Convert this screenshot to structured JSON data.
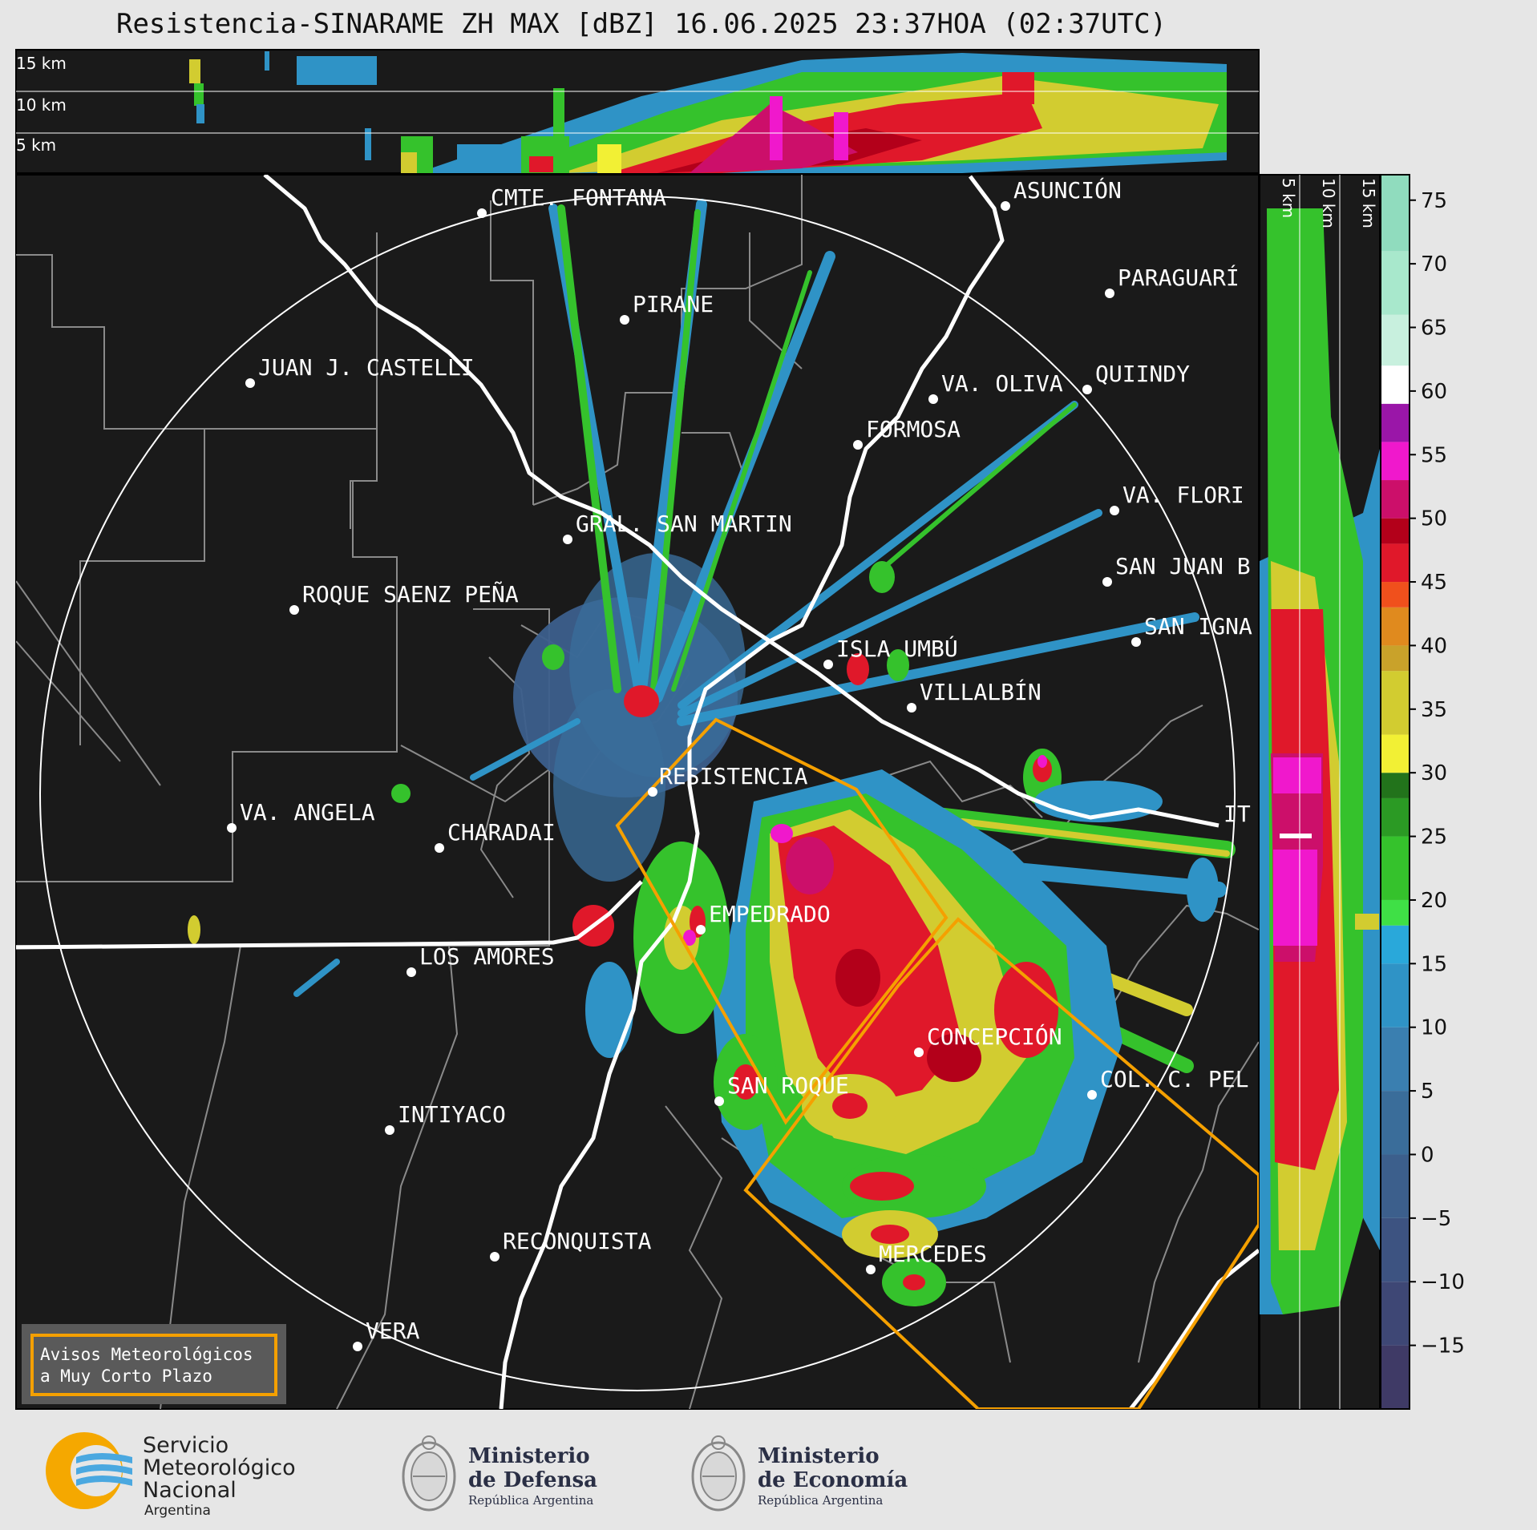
{
  "title": "Resistencia-SINARAME ZH MAX [dBZ] 16.06.2025 23:37HOA (02:37UTC)",
  "height_ticks": [
    "15 km",
    "10 km",
    "5 km"
  ],
  "colorbar": {
    "ticks": [
      "75",
      "70",
      "65",
      "60",
      "55",
      "50",
      "45",
      "40",
      "35",
      "30",
      "25",
      "20",
      "15",
      "10",
      "5",
      "0",
      "−5",
      "−10",
      "−15"
    ],
    "bands": [
      {
        "from": -20,
        "to": -15,
        "color": "#3f3a66"
      },
      {
        "from": -15,
        "to": -10,
        "color": "#3e4775"
      },
      {
        "from": -10,
        "to": -5,
        "color": "#3d5381"
      },
      {
        "from": -5,
        "to": 0,
        "color": "#3c5f8c"
      },
      {
        "from": 0,
        "to": 5,
        "color": "#3a6d9a"
      },
      {
        "from": 5,
        "to": 10,
        "color": "#3a7fb0"
      },
      {
        "from": 10,
        "to": 15,
        "color": "#2f93c6"
      },
      {
        "from": 15,
        "to": 18,
        "color": "#29a8da"
      },
      {
        "from": 18,
        "to": 20,
        "color": "#3fe046"
      },
      {
        "from": 20,
        "to": 25,
        "color": "#35c22c"
      },
      {
        "from": 25,
        "to": 28,
        "color": "#2b9a24"
      },
      {
        "from": 28,
        "to": 30,
        "color": "#22731b"
      },
      {
        "from": 30,
        "to": 33,
        "color": "#f2f034"
      },
      {
        "from": 33,
        "to": 38,
        "color": "#d2cc30"
      },
      {
        "from": 38,
        "to": 40,
        "color": "#c9a22a"
      },
      {
        "from": 40,
        "to": 43,
        "color": "#e08a1e"
      },
      {
        "from": 43,
        "to": 45,
        "color": "#f0501c"
      },
      {
        "from": 45,
        "to": 48,
        "color": "#e0182a"
      },
      {
        "from": 48,
        "to": 50,
        "color": "#b3001a"
      },
      {
        "from": 50,
        "to": 53,
        "color": "#cc0f6a"
      },
      {
        "from": 53,
        "to": 56,
        "color": "#f018cc"
      },
      {
        "from": 56,
        "to": 59,
        "color": "#9a16a8"
      },
      {
        "from": 59,
        "to": 62,
        "color": "#ffffff"
      },
      {
        "from": 62,
        "to": 66,
        "color": "#c8f0de"
      },
      {
        "from": 66,
        "to": 71,
        "color": "#a8e8cc"
      },
      {
        "from": 71,
        "to": 77,
        "color": "#90dcbe"
      }
    ]
  },
  "cities": [
    {
      "name": "CMTE. FONTANA"
    },
    {
      "name": "ASUNCIÓN"
    },
    {
      "name": "PIRANE"
    },
    {
      "name": "PARAGUARÍ"
    },
    {
      "name": "JUAN J. CASTELLI"
    },
    {
      "name": "VA. OLIVA"
    },
    {
      "name": "QUIINDY"
    },
    {
      "name": "FORMOSA"
    },
    {
      "name": "VA. FLORI"
    },
    {
      "name": "GRAL. SAN MARTIN"
    },
    {
      "name": "SAN JUAN B"
    },
    {
      "name": "ROQUE SAENZ PEÑA"
    },
    {
      "name": "SAN IGNA"
    },
    {
      "name": "ISLA UMBÚ"
    },
    {
      "name": "VILLALBÍN"
    },
    {
      "name": "RESISTENCIA"
    },
    {
      "name": "VA. ANGELA"
    },
    {
      "name": "CHARADAI"
    },
    {
      "name": "IT"
    },
    {
      "name": "EMPEDRADO"
    },
    {
      "name": "LOS AMORES"
    },
    {
      "name": "CONCEPCIÓN"
    },
    {
      "name": "COL. C. PEL"
    },
    {
      "name": "SAN ROQUE"
    },
    {
      "name": "INTIYACO"
    },
    {
      "name": "RECONQUISTA"
    },
    {
      "name": "MERCEDES"
    },
    {
      "name": "VERA"
    }
  ],
  "legend": {
    "line1": "Avisos Meteorológicos",
    "line2": "a Muy Corto Plazo",
    "color": "#f5a000"
  },
  "logos": {
    "smn": {
      "line1": "Servicio",
      "line2": "Meteorológico",
      "line3": "Nacional",
      "line4": "Argentina"
    },
    "defensa": {
      "line1": "Ministerio",
      "line2": "de Defensa",
      "line3": "República Argentina"
    },
    "economia": {
      "line1": "Ministerio",
      "line2": "de Economía",
      "line3": "República Argentina"
    }
  },
  "colors": {
    "background": "#1a1a1a",
    "warning": "#f5a000",
    "river": "#ffffff",
    "border": "#8a8a8a"
  }
}
